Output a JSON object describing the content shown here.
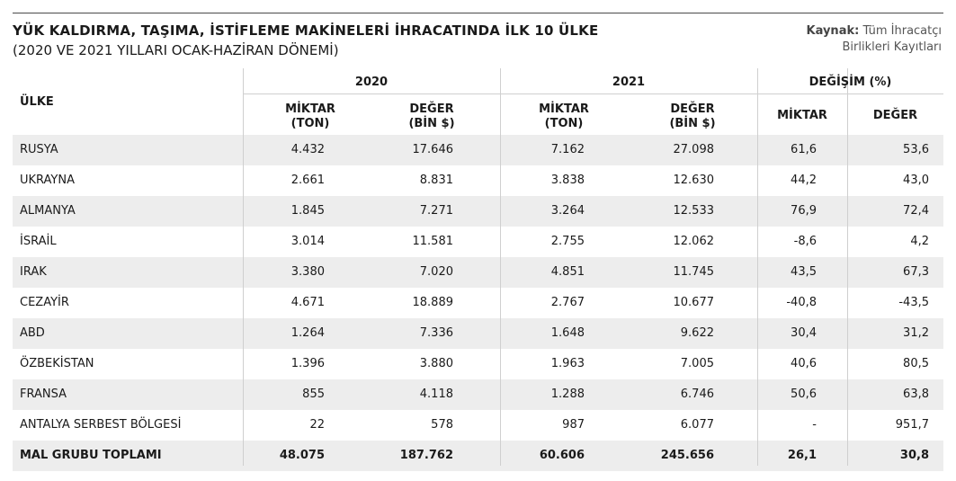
{
  "title": "YÜK KALDIRMA, TAŞIMA, İSTİFLEME MAKİNELERİ İHRACATINDA İLK 10 ÜLKE",
  "subtitle": "(2020 VE 2021 YILLARI OCAK-HAZİRAN DÖNEMİ)",
  "source": {
    "label": "Kaynak:",
    "text_line1": "Tüm İhracatçı",
    "text_line2": "Birlikleri Kayıtları"
  },
  "table": {
    "country_header": "ÜLKE",
    "group_2020": "2020",
    "group_2021": "2021",
    "group_change": "DEĞİŞİM (%)",
    "miktar_line1": "MİKTAR",
    "miktar_line2": "(TON)",
    "deger_line1": "DEĞER",
    "deger_line2": "(BİN $)",
    "change_miktar": "MİKTAR",
    "change_deger": "DEĞER",
    "rows": [
      {
        "country": "RUSYA",
        "m2020": "4.432",
        "d2020": "17.646",
        "m2021": "7.162",
        "d2021": "27.098",
        "cm": "61,6",
        "cd": "53,6"
      },
      {
        "country": "UKRAYNA",
        "m2020": "2.661",
        "d2020": "8.831",
        "m2021": "3.838",
        "d2021": "12.630",
        "cm": "44,2",
        "cd": "43,0"
      },
      {
        "country": "ALMANYA",
        "m2020": "1.845",
        "d2020": "7.271",
        "m2021": "3.264",
        "d2021": "12.533",
        "cm": "76,9",
        "cd": "72,4"
      },
      {
        "country": "İSRAİL",
        "m2020": "3.014",
        "d2020": "11.581",
        "m2021": "2.755",
        "d2021": "12.062",
        "cm": "-8,6",
        "cd": "4,2"
      },
      {
        "country": "IRAK",
        "m2020": "3.380",
        "d2020": "7.020",
        "m2021": "4.851",
        "d2021": "11.745",
        "cm": "43,5",
        "cd": "67,3"
      },
      {
        "country": "CEZAYİR",
        "m2020": "4.671",
        "d2020": "18.889",
        "m2021": "2.767",
        "d2021": "10.677",
        "cm": "-40,8",
        "cd": "-43,5"
      },
      {
        "country": "ABD",
        "m2020": "1.264",
        "d2020": "7.336",
        "m2021": "1.648",
        "d2021": "9.622",
        "cm": "30,4",
        "cd": "31,2"
      },
      {
        "country": "ÖZBEKİSTAN",
        "m2020": "1.396",
        "d2020": "3.880",
        "m2021": "1.963",
        "d2021": "7.005",
        "cm": "40,6",
        "cd": "80,5"
      },
      {
        "country": "FRANSA",
        "m2020": "855",
        "d2020": "4.118",
        "m2021": "1.288",
        "d2021": "6.746",
        "cm": "50,6",
        "cd": "63,8"
      },
      {
        "country": "ANTALYA SERBEST BÖLGESİ",
        "m2020": "22",
        "d2020": "578",
        "m2021": "987",
        "d2021": "6.077",
        "cm": "-",
        "cd": "951,7"
      }
    ],
    "total": {
      "country": "MAL GRUBU TOPLAMI",
      "m2020": "48.075",
      "d2020": "187.762",
      "m2021": "60.606",
      "d2021": "245.656",
      "cm": "26,1",
      "cd": "30,8"
    }
  }
}
